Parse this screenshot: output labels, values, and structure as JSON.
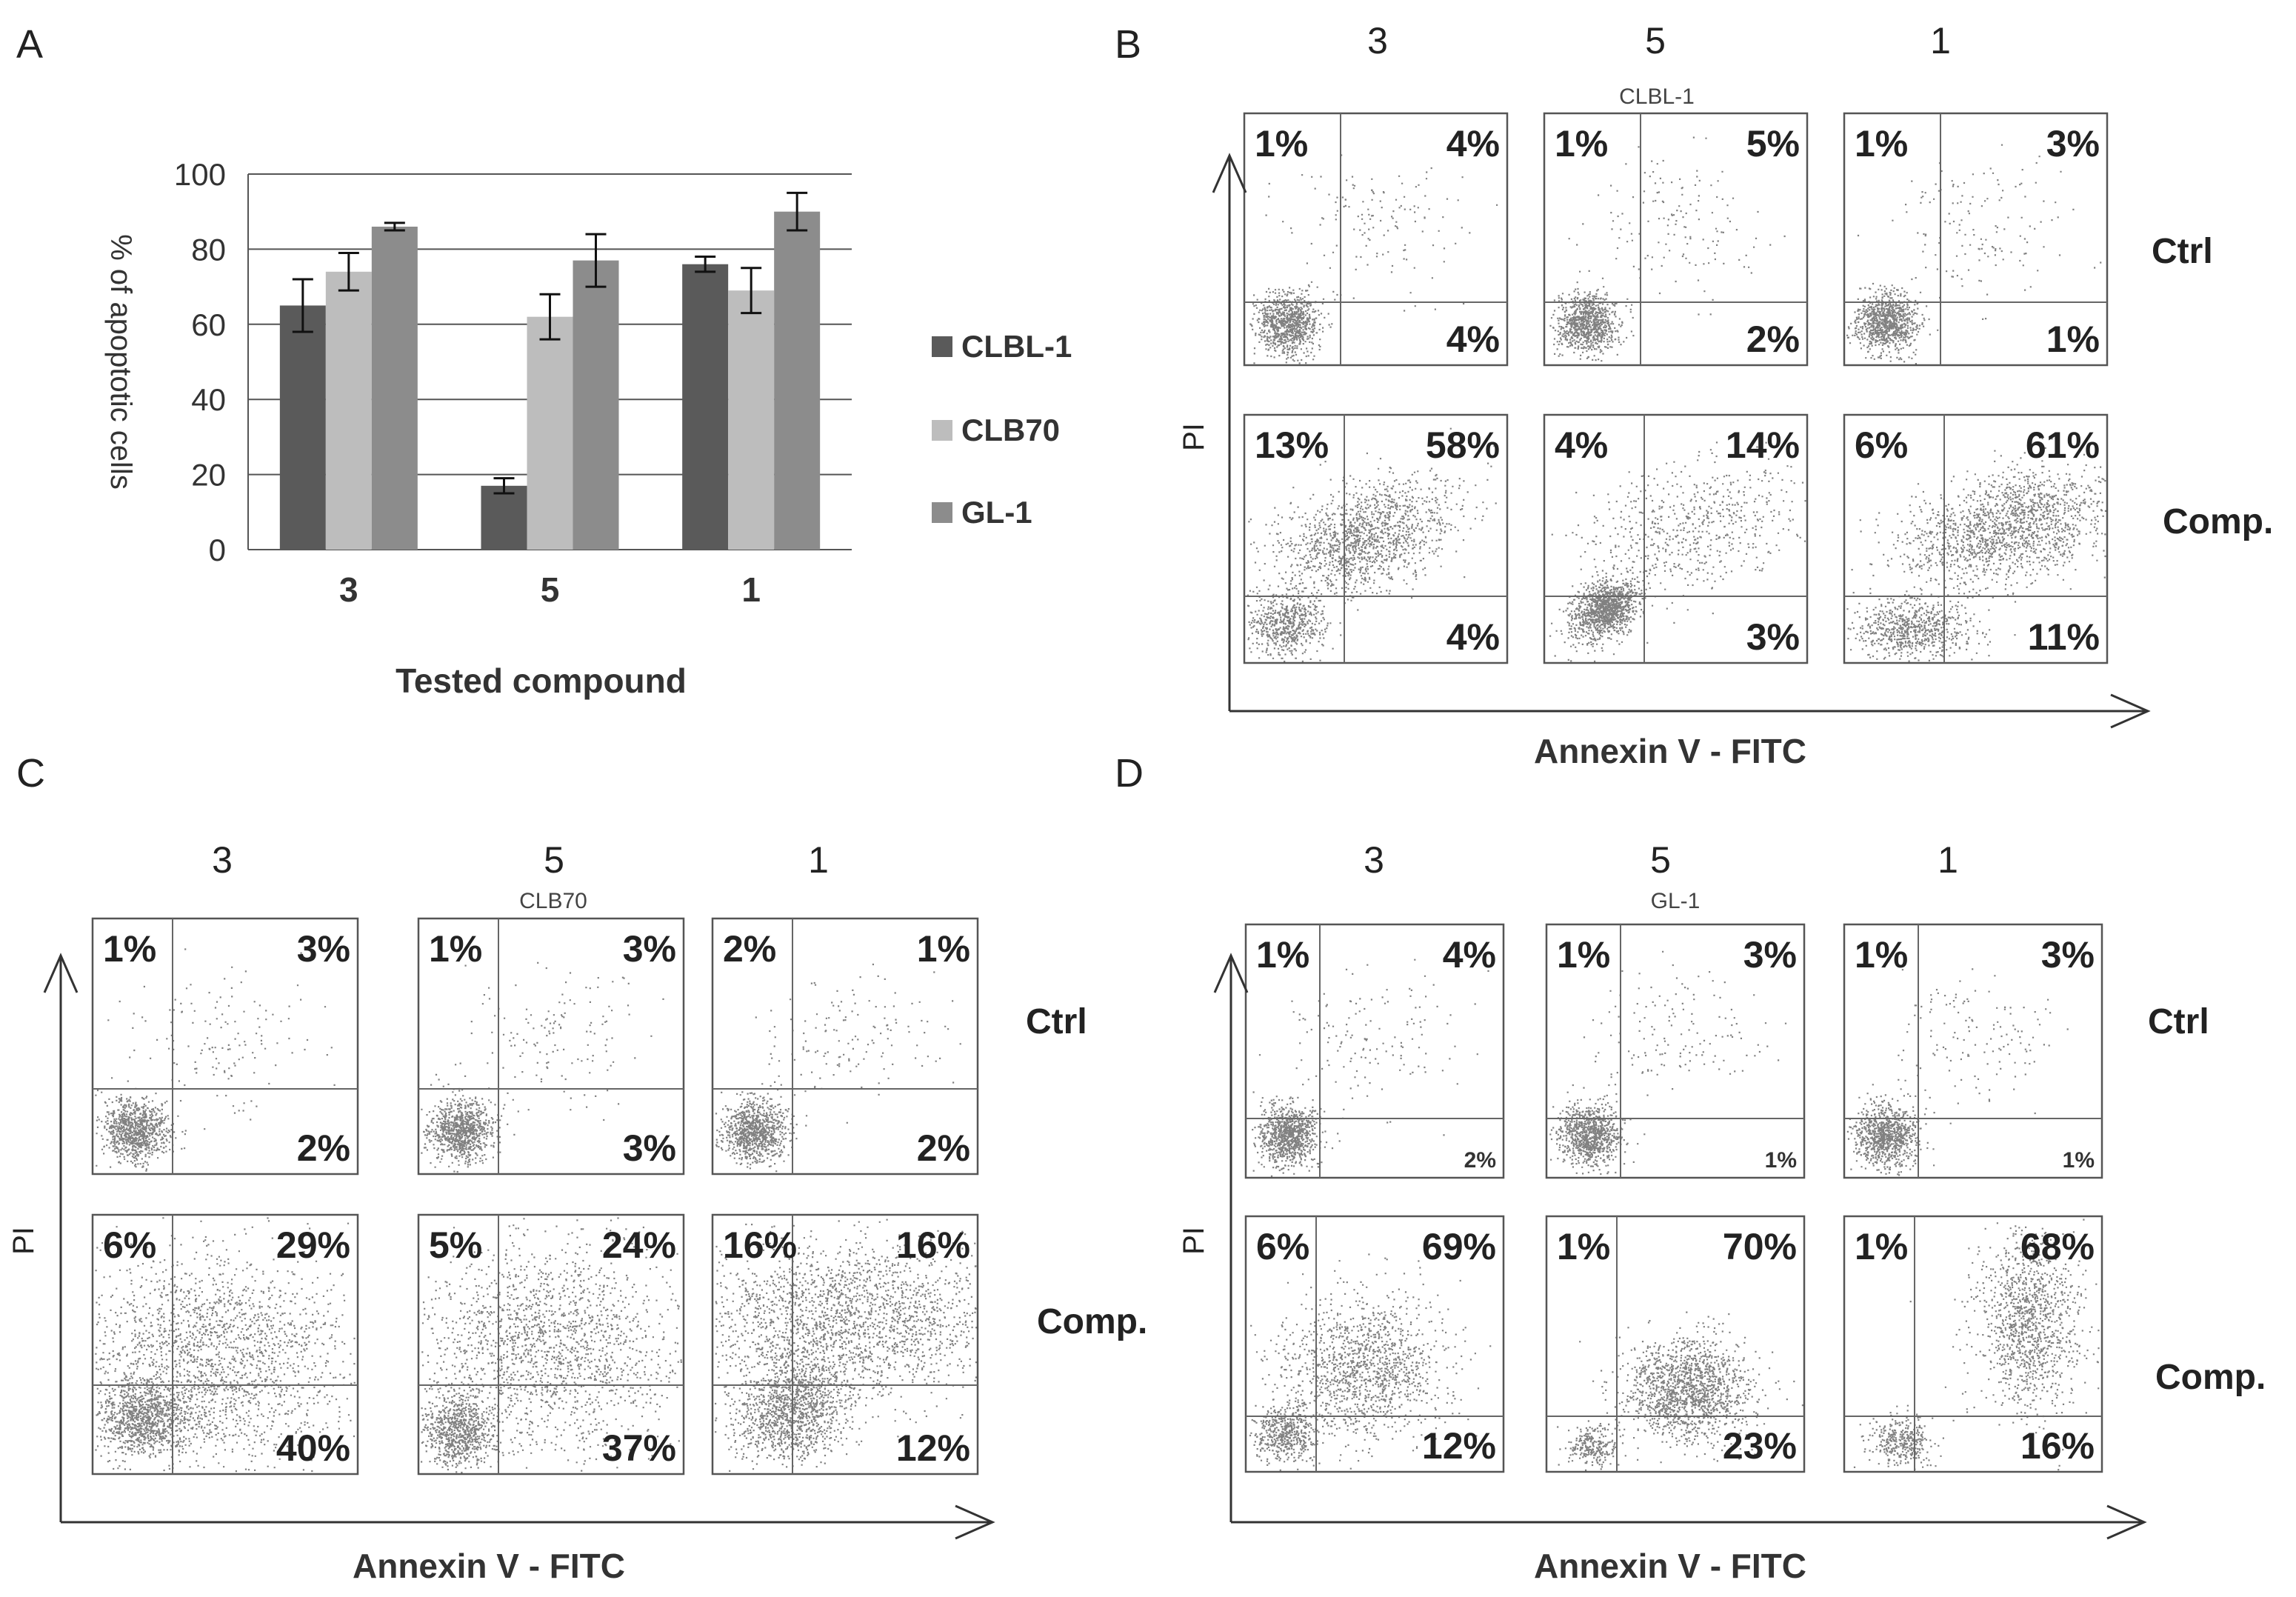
{
  "chart_data": [
    {
      "panel": "A",
      "type": "bar",
      "title": "",
      "categories": [
        "3",
        "5",
        "1"
      ],
      "series": [
        {
          "name": "CLBL-1",
          "values": [
            65,
            17,
            76
          ],
          "errors": [
            7,
            2,
            2
          ],
          "color": "#5a5a5a"
        },
        {
          "name": "CLB70",
          "values": [
            74,
            62,
            69
          ],
          "errors": [
            5,
            6,
            6
          ],
          "color": "#bdbdbd"
        },
        {
          "name": "GL-1",
          "values": [
            86,
            77,
            90
          ],
          "errors": [
            1,
            7,
            5
          ],
          "color": "#8c8c8c"
        }
      ],
      "xlabel": "Tested compound",
      "ylabel": "% of apoptotic cells",
      "ylim": [
        0,
        100
      ],
      "yticks": [
        "0",
        "20",
        "40",
        "60",
        "80",
        "100"
      ],
      "grid": true,
      "legend": "right"
    },
    {
      "panel": "B",
      "type": "table",
      "cell_line": "CLBL-1",
      "columns": [
        "3",
        "5",
        "1"
      ],
      "rows": [
        "Ctrl",
        "Comp."
      ],
      "xlabel": "Annexin V - FITC",
      "ylabel": "PI",
      "quadrants": [
        [
          {
            "ul": "1%",
            "ur": "4%",
            "lr": "4%"
          },
          {
            "ul": "1%",
            "ur": "5%",
            "lr": "2%"
          },
          {
            "ul": "1%",
            "ur": "3%",
            "lr": "1%"
          }
        ],
        [
          {
            "ul": "13%",
            "ur": "58%",
            "lr": "4%"
          },
          {
            "ul": "4%",
            "ur": "14%",
            "lr": "3%"
          },
          {
            "ul": "6%",
            "ur": "61%",
            "lr": "11%"
          }
        ]
      ]
    },
    {
      "panel": "C",
      "type": "table",
      "cell_line": "CLB70",
      "columns": [
        "3",
        "5",
        "1"
      ],
      "rows": [
        "Ctrl",
        "Comp."
      ],
      "xlabel": "Annexin V - FITC",
      "ylabel": "PI",
      "quadrants": [
        [
          {
            "ul": "1%",
            "ur": "3%",
            "lr": "2%"
          },
          {
            "ul": "1%",
            "ur": "3%",
            "lr": "3%"
          },
          {
            "ul": "2%",
            "ur": "1%",
            "lr": "2%"
          }
        ],
        [
          {
            "ul": "6%",
            "ur": "29%",
            "lr": "40%"
          },
          {
            "ul": "5%",
            "ur": "24%",
            "lr": "37%"
          },
          {
            "ul": "16%",
            "ur": "16%",
            "lr": "12%"
          }
        ]
      ]
    },
    {
      "panel": "D",
      "type": "table",
      "cell_line": "GL-1",
      "columns": [
        "3",
        "5",
        "1"
      ],
      "rows": [
        "Ctrl",
        "Comp."
      ],
      "xlabel": "Annexin V - FITC",
      "ylabel": "PI",
      "quadrants": [
        [
          {
            "ul": "1%",
            "ur": "4%",
            "lr": "2%"
          },
          {
            "ul": "1%",
            "ur": "3%",
            "lr": "1%"
          },
          {
            "ul": "1%",
            "ur": "3%",
            "lr": "1%"
          }
        ],
        [
          {
            "ul": "6%",
            "ur": "69%",
            "lr": "12%"
          },
          {
            "ul": "1%",
            "ur": "70%",
            "lr": "23%"
          },
          {
            "ul": "1%",
            "ur": "68%",
            "lr": "16%"
          }
        ]
      ]
    }
  ],
  "panel_labels": {
    "a": "A",
    "b": "B",
    "c": "C",
    "d": "D"
  }
}
